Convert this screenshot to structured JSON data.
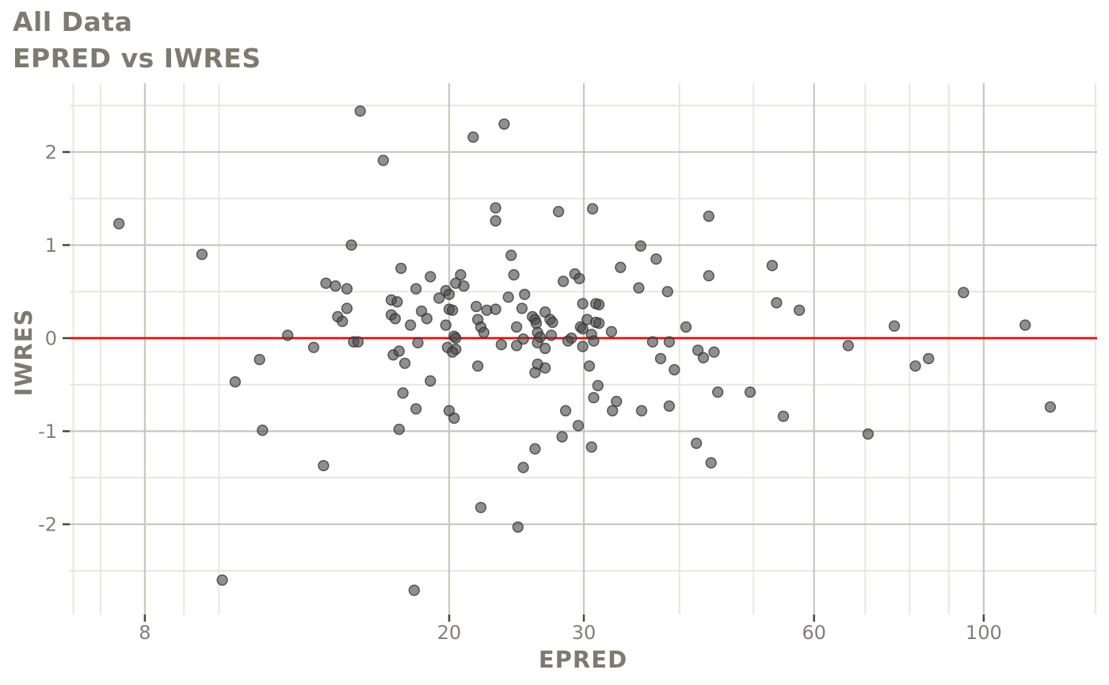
{
  "title": "All Data",
  "subtitle": "EPRED vs IWRES",
  "colors": {
    "title_text": "#7d7b6f",
    "tick_label_text": "#827f77",
    "axis_tick_mark": "#47473f",
    "grid_major": "#c9c8bb",
    "grid_minor": "#e9e7dc",
    "reference_line": "#ff0000",
    "point_fill": "#4b4b4b",
    "point_stroke": "#303030",
    "background": "#ffffff"
  },
  "chart_data": {
    "type": "scatter",
    "title": "All Data",
    "subtitle": "EPRED vs IWRES",
    "xlabel": "EPRED",
    "ylabel": "IWRES",
    "x_scale": "log10",
    "grid": true,
    "legend": "none",
    "xlim": [
      6.38,
      140.7
    ],
    "ylim": [
      -2.97,
      2.74
    ],
    "x_ticks": [
      8,
      20,
      30,
      60,
      100
    ],
    "x_minor_ticks": [
      6.45,
      7,
      9,
      10,
      40,
      50,
      70,
      80,
      90,
      140
    ],
    "y_ticks": [
      -2,
      -1,
      0,
      1,
      2
    ],
    "y_minor_ticks": [
      -2.5,
      -1.5,
      -0.5,
      0.5,
      1.5,
      2.5
    ],
    "reference_line": {
      "y": 0,
      "color": "#ff0000"
    },
    "points": [
      [
        15.3,
        2.44
      ],
      [
        16.4,
        1.91
      ],
      [
        7.4,
        1.23
      ],
      [
        14.9,
        1.0
      ],
      [
        9.5,
        0.9
      ],
      [
        17.3,
        0.75
      ],
      [
        13.8,
        0.59
      ],
      [
        14.2,
        0.56
      ],
      [
        14.7,
        0.53
      ],
      [
        16.8,
        0.41
      ],
      [
        17.1,
        0.39
      ],
      [
        16.8,
        0.25
      ],
      [
        17.0,
        0.21
      ],
      [
        17.8,
        0.14
      ],
      [
        14.3,
        0.23
      ],
      [
        14.5,
        0.18
      ],
      [
        14.7,
        0.32
      ],
      [
        12.3,
        0.03
      ],
      [
        15.0,
        -0.04
      ],
      [
        15.2,
        -0.04
      ],
      [
        13.3,
        -0.1
      ],
      [
        23.6,
        2.3
      ],
      [
        21.5,
        2.16
      ],
      [
        23.0,
        1.4
      ],
      [
        23.0,
        1.26
      ],
      [
        27.8,
        1.36
      ],
      [
        30.8,
        1.39
      ],
      [
        43.7,
        1.31
      ],
      [
        35.6,
        0.99
      ],
      [
        37.3,
        0.85
      ],
      [
        24.1,
        0.89
      ],
      [
        33.5,
        0.76
      ],
      [
        43.7,
        0.67
      ],
      [
        29.2,
        0.69
      ],
      [
        29.6,
        0.64
      ],
      [
        28.2,
        0.61
      ],
      [
        24.3,
        0.68
      ],
      [
        18.9,
        0.66
      ],
      [
        20.7,
        0.68
      ],
      [
        20.4,
        0.59
      ],
      [
        20.9,
        0.56
      ],
      [
        18.1,
        0.53
      ],
      [
        35.4,
        0.54
      ],
      [
        38.6,
        0.5
      ],
      [
        19.4,
        0.43
      ],
      [
        19.8,
        0.51
      ],
      [
        20.0,
        0.47
      ],
      [
        23.9,
        0.44
      ],
      [
        25.1,
        0.47
      ],
      [
        18.4,
        0.29
      ],
      [
        18.7,
        0.21
      ],
      [
        21.7,
        0.34
      ],
      [
        22.4,
        0.3
      ],
      [
        23.0,
        0.31
      ],
      [
        24.9,
        0.32
      ],
      [
        25.7,
        0.23
      ],
      [
        25.9,
        0.2
      ],
      [
        26.7,
        0.28
      ],
      [
        27.1,
        0.2
      ],
      [
        27.3,
        0.17
      ],
      [
        21.8,
        0.2
      ],
      [
        22.0,
        0.12
      ],
      [
        22.2,
        0.06
      ],
      [
        19.8,
        0.14
      ],
      [
        20.0,
        0.31
      ],
      [
        20.2,
        0.3
      ],
      [
        29.9,
        0.37
      ],
      [
        31.1,
        0.37
      ],
      [
        31.4,
        0.36
      ],
      [
        30.3,
        0.2
      ],
      [
        31.1,
        0.17
      ],
      [
        31.4,
        0.16
      ],
      [
        29.7,
        0.12
      ],
      [
        29.9,
        0.1
      ],
      [
        28.9,
        0.0
      ],
      [
        30.7,
        0.04
      ],
      [
        30.9,
        -0.03
      ],
      [
        32.6,
        0.07
      ],
      [
        38.8,
        -0.04
      ],
      [
        40.8,
        0.12
      ],
      [
        26.1,
        0.06
      ],
      [
        26.3,
        0.01
      ],
      [
        26.1,
        -0.05
      ],
      [
        25.0,
        -0.01
      ],
      [
        23.4,
        -0.07
      ],
      [
        20.3,
        0.02
      ],
      [
        20.4,
        0.0
      ],
      [
        19.9,
        -0.1
      ],
      [
        20.4,
        -0.12
      ],
      [
        28.6,
        -0.03
      ],
      [
        29.9,
        -0.09
      ],
      [
        36.9,
        -0.04
      ],
      [
        26.7,
        -0.11
      ],
      [
        24.5,
        0.12
      ],
      [
        26.0,
        0.16
      ],
      [
        27.2,
        0.03
      ],
      [
        52.9,
        0.78
      ],
      [
        53.6,
        0.38
      ],
      [
        57.4,
        0.3
      ],
      [
        94.1,
        0.49
      ],
      [
        76.4,
        0.13
      ],
      [
        113.3,
        0.14
      ],
      [
        66.5,
        -0.08
      ],
      [
        11.3,
        -0.23
      ],
      [
        10.5,
        -0.47
      ],
      [
        11.4,
        -0.99
      ],
      [
        13.7,
        -1.37
      ],
      [
        10.1,
        -2.6
      ],
      [
        16.9,
        -0.18
      ],
      [
        17.2,
        -0.14
      ],
      [
        17.5,
        -0.27
      ],
      [
        17.4,
        -0.59
      ],
      [
        18.1,
        -0.76
      ],
      [
        17.2,
        -0.98
      ],
      [
        18.2,
        -0.05
      ],
      [
        20.2,
        -0.15
      ],
      [
        21.8,
        -0.3
      ],
      [
        18.9,
        -0.46
      ],
      [
        20.0,
        -0.78
      ],
      [
        20.3,
        -0.86
      ],
      [
        24.5,
        -0.08
      ],
      [
        26.1,
        -0.28
      ],
      [
        25.9,
        -0.37
      ],
      [
        26.7,
        -0.32
      ],
      [
        30.5,
        -0.3
      ],
      [
        31.3,
        -0.51
      ],
      [
        30.9,
        -0.64
      ],
      [
        32.7,
        -0.78
      ],
      [
        33.1,
        -0.68
      ],
      [
        35.7,
        -0.78
      ],
      [
        37.8,
        -0.22
      ],
      [
        38.8,
        -0.73
      ],
      [
        39.4,
        -0.34
      ],
      [
        28.4,
        -0.78
      ],
      [
        29.5,
        -0.94
      ],
      [
        28.1,
        -1.06
      ],
      [
        30.7,
        -1.17
      ],
      [
        25.9,
        -1.19
      ],
      [
        25.0,
        -1.39
      ],
      [
        22.0,
        -1.82
      ],
      [
        24.6,
        -2.03
      ],
      [
        18.0,
        -2.71
      ],
      [
        42.3,
        -0.13
      ],
      [
        43.0,
        -0.21
      ],
      [
        44.4,
        -0.15
      ],
      [
        42.1,
        -1.13
      ],
      [
        44.0,
        -1.34
      ],
      [
        44.9,
        -0.58
      ],
      [
        49.5,
        -0.58
      ],
      [
        81.4,
        -0.3
      ],
      [
        84.7,
        -0.22
      ],
      [
        54.7,
        -0.84
      ],
      [
        122.2,
        -0.74
      ],
      [
        70.6,
        -1.03
      ]
    ],
    "point_style": {
      "fill": "#4b4b4b",
      "fill_opacity": 0.62,
      "stroke": "#303030",
      "stroke_opacity": 0.75,
      "radius": 6.4
    }
  }
}
